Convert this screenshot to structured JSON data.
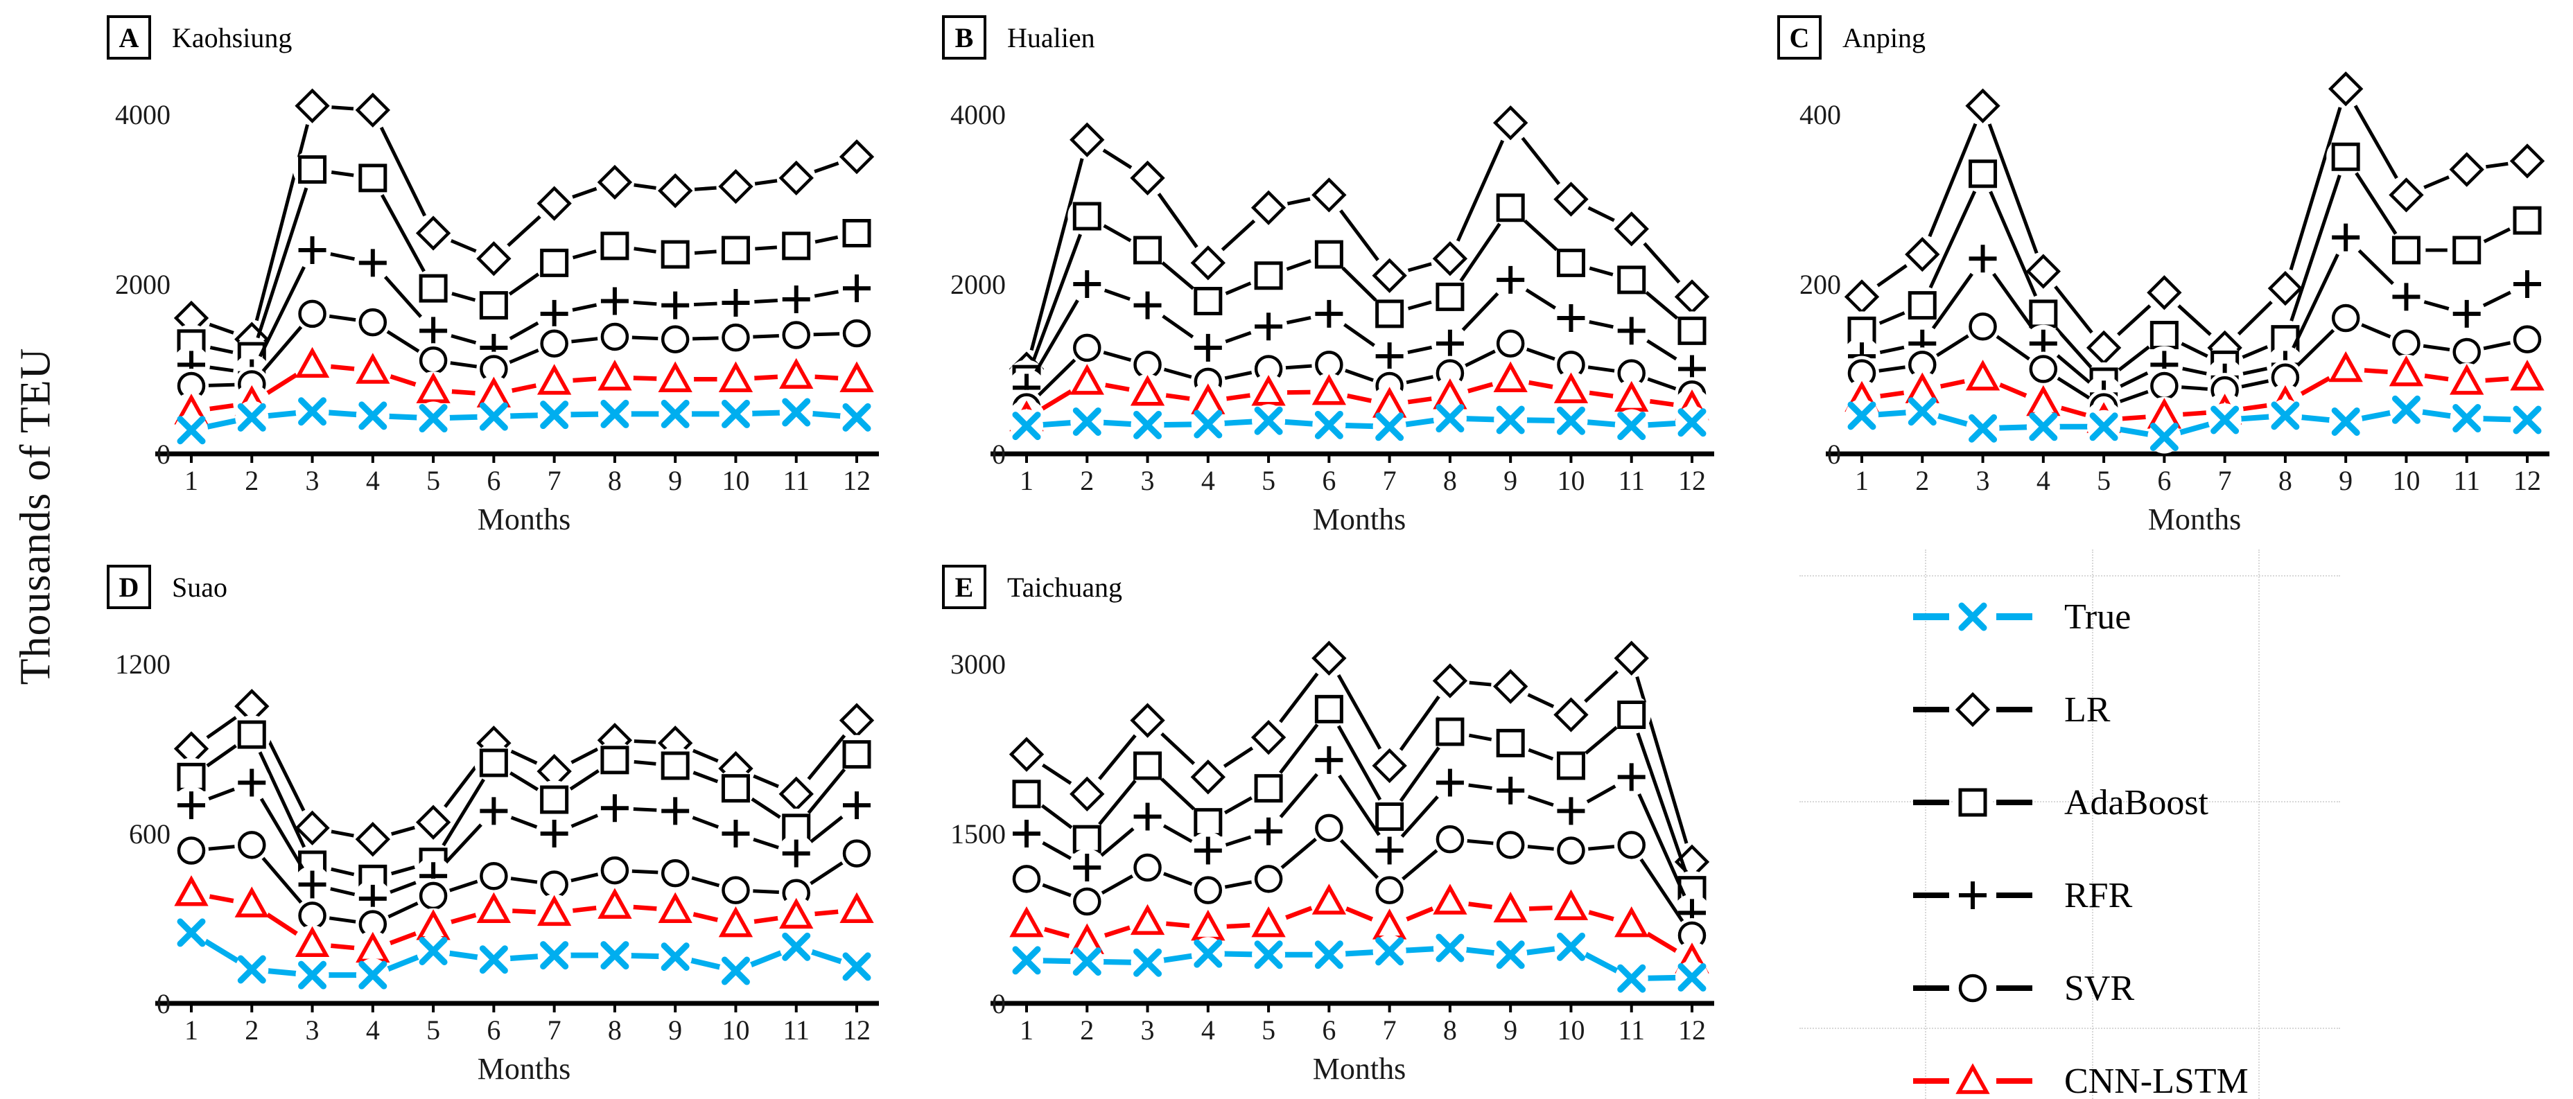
{
  "figure": {
    "y_axis_label": "Thousands of TEU",
    "x_axis_label": "Months"
  },
  "colors": {
    "true_line": "#00AEEF",
    "cnn_lstm_line": "#FF0000",
    "model_line": "#000000",
    "axis": "#000000"
  },
  "legend": {
    "items": [
      {
        "label": "True",
        "marker": "x",
        "color": "#00AEEF"
      },
      {
        "label": "LR",
        "marker": "diamond",
        "color": "#000000"
      },
      {
        "label": "AdaBoost",
        "marker": "square",
        "color": "#000000"
      },
      {
        "label": "RFR",
        "marker": "plus",
        "color": "#000000"
      },
      {
        "label": "SVR",
        "marker": "circle",
        "color": "#000000"
      },
      {
        "label": "CNN-LSTM",
        "marker": "triangle",
        "color": "#FF0000"
      }
    ]
  },
  "chart_data": [
    {
      "type": "line",
      "panel_label": "A",
      "title": "Kaohsiung",
      "x": [
        "1",
        "2",
        "3",
        "4",
        "5",
        "6",
        "7",
        "8",
        "9",
        "10",
        "11",
        "12"
      ],
      "xlabel": "Months",
      "yticks": [
        0,
        2000,
        4000
      ],
      "ylim": [
        0,
        4500
      ],
      "grid": false,
      "series": [
        {
          "name": "True",
          "marker": "x",
          "color": "#00AEEF",
          "values": [
            280,
            430,
            500,
            450,
            420,
            440,
            460,
            470,
            470,
            470,
            490,
            430
          ]
        },
        {
          "name": "LR",
          "marker": "diamond",
          "color": "#000000",
          "values": [
            1600,
            1350,
            4100,
            4050,
            2600,
            2300,
            2950,
            3200,
            3100,
            3150,
            3250,
            3500
          ]
        },
        {
          "name": "AdaBoost",
          "marker": "square",
          "color": "#000000",
          "values": [
            1300,
            1150,
            3350,
            3250,
            1950,
            1750,
            2250,
            2450,
            2350,
            2400,
            2450,
            2600
          ]
        },
        {
          "name": "RFR",
          "marker": "plus",
          "color": "#000000",
          "values": [
            1050,
            950,
            2400,
            2250,
            1450,
            1250,
            1650,
            1800,
            1750,
            1780,
            1820,
            1950
          ]
        },
        {
          "name": "SVR",
          "marker": "circle",
          "color": "#000000",
          "values": [
            800,
            820,
            1650,
            1550,
            1100,
            1000,
            1300,
            1380,
            1350,
            1370,
            1400,
            1420
          ]
        },
        {
          "name": "CNN-LSTM",
          "marker": "triangle",
          "color": "#FF0000",
          "values": [
            500,
            600,
            1050,
            980,
            750,
            700,
            850,
            900,
            880,
            880,
            920,
            880
          ]
        }
      ]
    },
    {
      "type": "line",
      "panel_label": "B",
      "title": "Hualien",
      "x": [
        "1",
        "2",
        "3",
        "4",
        "5",
        "6",
        "7",
        "8",
        "9",
        "10",
        "11",
        "12"
      ],
      "xlabel": "Months",
      "yticks": [
        0,
        2000,
        4000
      ],
      "ylim": [
        0,
        4500
      ],
      "grid": false,
      "series": [
        {
          "name": "True",
          "marker": "x",
          "color": "#00AEEF",
          "values": [
            330,
            380,
            340,
            350,
            390,
            340,
            320,
            420,
            400,
            390,
            330,
            370
          ]
        },
        {
          "name": "LR",
          "marker": "diamond",
          "color": "#000000",
          "values": [
            1000,
            3700,
            3250,
            2250,
            2900,
            3050,
            2100,
            2300,
            3900,
            3000,
            2650,
            1850
          ]
        },
        {
          "name": "AdaBoost",
          "marker": "square",
          "color": "#000000",
          "values": [
            880,
            2800,
            2400,
            1800,
            2100,
            2350,
            1650,
            1850,
            2900,
            2250,
            2050,
            1450
          ]
        },
        {
          "name": "RFR",
          "marker": "plus",
          "color": "#000000",
          "values": [
            780,
            2000,
            1750,
            1250,
            1500,
            1650,
            1150,
            1300,
            2050,
            1600,
            1450,
            1000
          ]
        },
        {
          "name": "SVR",
          "marker": "circle",
          "color": "#000000",
          "values": [
            550,
            1250,
            1050,
            850,
            1000,
            1050,
            800,
            950,
            1300,
            1050,
            950,
            700
          ]
        },
        {
          "name": "CNN-LSTM",
          "marker": "triangle",
          "color": "#FF0000",
          "values": [
            420,
            850,
            720,
            620,
            720,
            730,
            580,
            680,
            880,
            750,
            650,
            550
          ]
        }
      ]
    },
    {
      "type": "line",
      "panel_label": "C",
      "title": "Anping",
      "x": [
        "1",
        "2",
        "3",
        "4",
        "5",
        "6",
        "7",
        "8",
        "9",
        "10",
        "11",
        "12"
      ],
      "xlabel": "Months",
      "yticks": [
        0,
        200,
        400
      ],
      "ylim": [
        0,
        450
      ],
      "grid": false,
      "series": [
        {
          "name": "True",
          "marker": "x",
          "color": "#00AEEF",
          "values": [
            45,
            50,
            30,
            32,
            32,
            20,
            40,
            45,
            38,
            52,
            42,
            40
          ]
        },
        {
          "name": "LR",
          "marker": "diamond",
          "color": "#000000",
          "values": [
            185,
            235,
            410,
            215,
            125,
            190,
            125,
            195,
            430,
            305,
            335,
            345
          ]
        },
        {
          "name": "AdaBoost",
          "marker": "square",
          "color": "#000000",
          "values": [
            145,
            175,
            330,
            165,
            85,
            140,
            105,
            135,
            350,
            240,
            240,
            275
          ]
        },
        {
          "name": "RFR",
          "marker": "plus",
          "color": "#000000",
          "values": [
            115,
            130,
            230,
            130,
            70,
            105,
            90,
            105,
            255,
            185,
            165,
            200
          ]
        },
        {
          "name": "SVR",
          "marker": "circle",
          "color": "#000000",
          "values": [
            95,
            105,
            150,
            100,
            55,
            80,
            75,
            90,
            160,
            130,
            120,
            135
          ]
        },
        {
          "name": "CNN-LSTM",
          "marker": "triangle",
          "color": "#FF0000",
          "values": [
            65,
            75,
            90,
            60,
            40,
            45,
            50,
            60,
            100,
            95,
            85,
            90
          ]
        }
      ]
    },
    {
      "type": "line",
      "panel_label": "D",
      "title": "Suao",
      "x": [
        "1",
        "2",
        "3",
        "4",
        "5",
        "6",
        "7",
        "8",
        "9",
        "10",
        "11",
        "12"
      ],
      "xlabel": "Months",
      "yticks": [
        0,
        600,
        1200
      ],
      "ylim": [
        0,
        1350
      ],
      "grid": false,
      "series": [
        {
          "name": "True",
          "marker": "x",
          "color": "#00AEEF",
          "values": [
            250,
            120,
            100,
            100,
            185,
            155,
            170,
            170,
            165,
            115,
            200,
            130
          ]
        },
        {
          "name": "LR",
          "marker": "diamond",
          "color": "#000000",
          "values": [
            900,
            1050,
            620,
            580,
            640,
            920,
            820,
            930,
            920,
            830,
            740,
            1000
          ]
        },
        {
          "name": "AdaBoost",
          "marker": "square",
          "color": "#000000",
          "values": [
            800,
            950,
            490,
            440,
            500,
            850,
            720,
            860,
            840,
            760,
            620,
            880
          ]
        },
        {
          "name": "RFR",
          "marker": "plus",
          "color": "#000000",
          "values": [
            700,
            780,
            420,
            370,
            450,
            680,
            600,
            690,
            680,
            600,
            530,
            700
          ]
        },
        {
          "name": "SVR",
          "marker": "circle",
          "color": "#000000",
          "values": [
            540,
            560,
            310,
            280,
            380,
            450,
            420,
            470,
            460,
            400,
            390,
            530
          ]
        },
        {
          "name": "CNN-LSTM",
          "marker": "triangle",
          "color": "#FF0000",
          "values": [
            390,
            350,
            210,
            190,
            270,
            330,
            320,
            345,
            330,
            280,
            310,
            330
          ]
        }
      ]
    },
    {
      "type": "line",
      "panel_label": "E",
      "title": "Taichuang",
      "x": [
        "1",
        "2",
        "3",
        "4",
        "5",
        "6",
        "7",
        "8",
        "9",
        "10",
        "11",
        "12"
      ],
      "xlabel": "Months",
      "yticks": [
        0,
        1500,
        3000
      ],
      "ylim": [
        0,
        3400
      ],
      "grid": false,
      "series": [
        {
          "name": "True",
          "marker": "x",
          "color": "#00AEEF",
          "values": [
            380,
            370,
            360,
            440,
            430,
            430,
            460,
            490,
            430,
            500,
            220,
            230
          ]
        },
        {
          "name": "LR",
          "marker": "diamond",
          "color": "#000000",
          "values": [
            2200,
            1850,
            2500,
            2000,
            2350,
            3050,
            2100,
            2850,
            2800,
            2550,
            3050,
            1250
          ]
        },
        {
          "name": "AdaBoost",
          "marker": "square",
          "color": "#000000",
          "values": [
            1850,
            1450,
            2100,
            1600,
            1900,
            2600,
            1650,
            2400,
            2300,
            2100,
            2550,
            1000
          ]
        },
        {
          "name": "RFR",
          "marker": "plus",
          "color": "#000000",
          "values": [
            1500,
            1200,
            1650,
            1350,
            1520,
            2150,
            1350,
            1950,
            1880,
            1700,
            2000,
            800
          ]
        },
        {
          "name": "SVR",
          "marker": "circle",
          "color": "#000000",
          "values": [
            1100,
            900,
            1200,
            1000,
            1100,
            1550,
            1000,
            1450,
            1400,
            1350,
            1400,
            600
          ]
        },
        {
          "name": "CNN-LSTM",
          "marker": "triangle",
          "color": "#FF0000",
          "values": [
            700,
            550,
            720,
            670,
            700,
            900,
            680,
            900,
            830,
            850,
            700,
            380
          ]
        }
      ]
    }
  ]
}
